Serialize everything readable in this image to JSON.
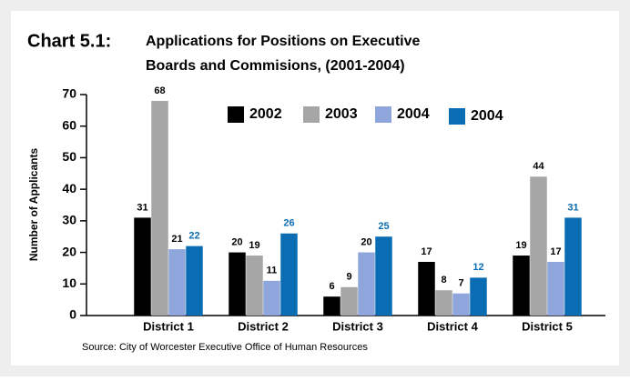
{
  "chart_data": {
    "type": "bar",
    "title": "Chart 5.1:",
    "subtitle": [
      "Applications for Positions on Executive",
      "Boards and Commisions, (2001-2004)"
    ],
    "y_label": "Number of Applicants",
    "source": "Source: City of Worcester Executive Office of Human Resources",
    "categories": [
      "District 1",
      "District 2",
      "District 3",
      "District 4",
      "District 5"
    ],
    "series": [
      {
        "name": "2002",
        "color": "#000000",
        "label_color": "#000000",
        "values": [
          31,
          20,
          6,
          17,
          19
        ]
      },
      {
        "name": "2003",
        "color": "#a6a6a6",
        "label_color": "#000000",
        "values": [
          68,
          19,
          9,
          8,
          44
        ]
      },
      {
        "name": "2004",
        "color": "#8fa6dc",
        "label_color": "#000000",
        "values": [
          21,
          11,
          20,
          7,
          17
        ]
      },
      {
        "name": "2004",
        "color": "#0a6db3",
        "label_color": "#0a6db3",
        "values": [
          22,
          26,
          25,
          12,
          31
        ]
      }
    ],
    "ylim": [
      0,
      70
    ],
    "yticks": [
      0,
      10,
      20,
      30,
      40,
      50,
      60,
      70
    ],
    "grid": false
  }
}
